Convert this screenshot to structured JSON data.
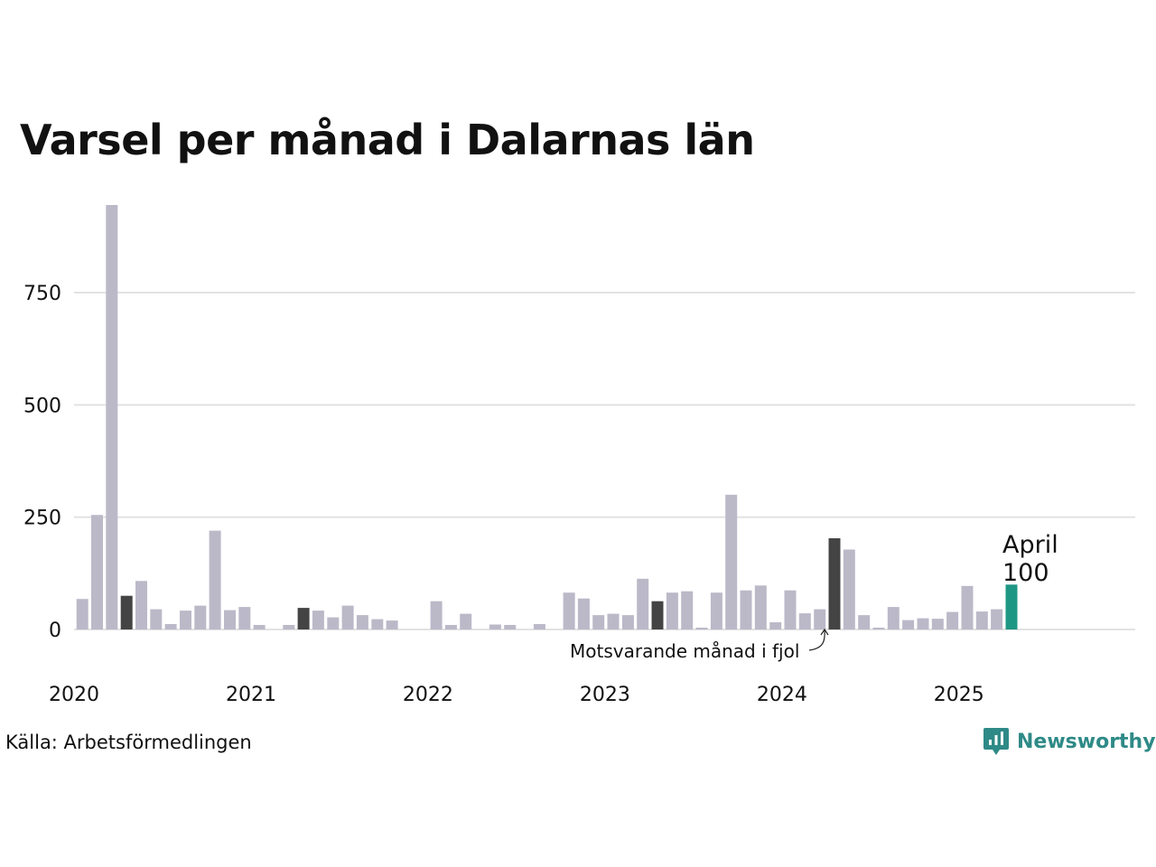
{
  "chart_data": {
    "type": "bar",
    "title": "Varsel per månad i Dalarnas län",
    "start": "2020-01",
    "values": [
      68,
      255,
      945,
      75,
      108,
      45,
      12,
      42,
      53,
      220,
      43,
      50,
      10,
      0,
      10,
      48,
      42,
      27,
      53,
      32,
      23,
      20,
      0,
      0,
      63,
      10,
      35,
      0,
      11,
      10,
      0,
      12,
      0,
      82,
      69,
      32,
      35,
      32,
      113,
      63,
      82,
      85,
      4,
      82,
      300,
      87,
      98,
      16,
      87,
      36,
      45,
      203,
      178,
      32,
      4,
      50,
      21,
      25,
      24,
      39,
      97,
      40,
      45,
      100
    ],
    "highlight": {
      "2020-04": "dark",
      "2021-04": "dark",
      "2023-04": "dark",
      "2024-04": "dark",
      "2025-04": "accent"
    },
    "ylim": [
      0,
      945
    ],
    "yticks": [
      "0",
      "250",
      "500",
      "750"
    ],
    "yticks_values": [
      0,
      250,
      500,
      750
    ],
    "xticks": [
      "2020",
      "2021",
      "2022",
      "2023",
      "2024",
      "2025"
    ],
    "xlim": [
      "2020-01",
      "2025-12"
    ],
    "grid": "horizontal",
    "colors": {
      "base": "#bbb9c8",
      "dark": "#444444",
      "accent": "#1f9785",
      "grid": "#e2e2e2"
    },
    "annotations": {
      "current_month": "April",
      "current_value": "100",
      "last_year": "Motsvarande månad i fjol"
    }
  },
  "source": "Källa: Arbetsförmedlingen",
  "brand": {
    "name": "Newsworthy",
    "icon": "newsworthy-logo-icon",
    "color": "#2e8a87"
  }
}
